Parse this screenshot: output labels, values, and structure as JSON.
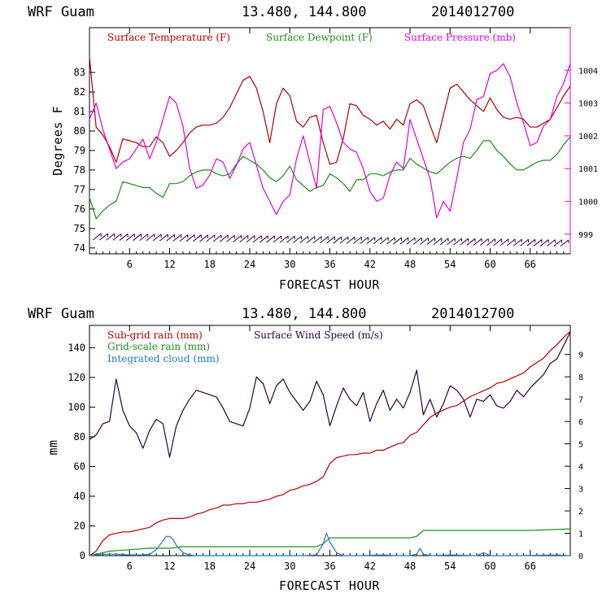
{
  "chart_data": [
    {
      "type": "line",
      "header": {
        "site": "WRF   Guam",
        "coords": "13.480, 144.800",
        "run": "2014012700"
      },
      "xlabel": "FORECAST HOUR",
      "ylabel": "Degrees F",
      "xlim": [
        0,
        72
      ],
      "ylim": [
        73.7,
        85.3
      ],
      "y2lim": [
        998.4,
        1005.3
      ],
      "xticks": [
        "6",
        "12",
        "18",
        "24",
        "30",
        "36",
        "42",
        "48",
        "54",
        "60",
        "66"
      ],
      "yticks": [
        "74",
        "75",
        "76",
        "77",
        "78",
        "79",
        "80",
        "81",
        "82",
        "83"
      ],
      "y2ticks": [
        "999",
        "1000",
        "1001",
        "1002",
        "1003",
        "1004"
      ],
      "colors": {
        "temperature": "#b00000",
        "dewpoint": "#1e8c1e",
        "pressure": "#e000e0",
        "wind_barbs": "#2a0040"
      },
      "legend": [
        "Surface Temperature (F)",
        "Surface Dewpoint (F)",
        "Surface Pressure (mb)"
      ],
      "series": [
        {
          "name": "Surface Temperature (F)",
          "axis": "left",
          "x": [
            0,
            1,
            2,
            3,
            4,
            5,
            6,
            7,
            8,
            9,
            10,
            11,
            12,
            13,
            14,
            15,
            16,
            17,
            18,
            19,
            20,
            21,
            22,
            23,
            24,
            25,
            26,
            27,
            28,
            29,
            30,
            31,
            32,
            33,
            34,
            35,
            36,
            37,
            38,
            39,
            40,
            41,
            42,
            43,
            44,
            45,
            46,
            47,
            48,
            49,
            50,
            51,
            52,
            53,
            54,
            55,
            56,
            57,
            58,
            59,
            60,
            61,
            62,
            63,
            64,
            65,
            66,
            67,
            68,
            69,
            70,
            71,
            72
          ],
          "values": [
            83.8,
            80.2,
            79.8,
            79.2,
            78.4,
            79.6,
            79.5,
            79.4,
            79.2,
            79.2,
            79.7,
            79.4,
            78.7,
            79.0,
            79.4,
            79.9,
            80.2,
            80.3,
            80.3,
            80.4,
            80.7,
            81.2,
            81.9,
            82.6,
            82.8,
            82.2,
            81.0,
            79.4,
            81.4,
            82.2,
            81.8,
            80.5,
            80.2,
            80.7,
            80.8,
            79.4,
            78.3,
            78.4,
            79.6,
            81.4,
            81.3,
            80.8,
            80.6,
            80.3,
            80.5,
            80.1,
            80.6,
            80.3,
            81.4,
            81.6,
            81.3,
            80.3,
            79.4,
            80.8,
            82.2,
            82.4,
            82.0,
            81.6,
            81.3,
            81.0,
            81.7,
            81.1,
            80.7,
            80.6,
            80.7,
            80.6,
            80.2,
            80.2,
            80.4,
            80.6,
            81.2,
            81.8,
            82.3
          ]
        },
        {
          "name": "Surface Dewpoint (F)",
          "axis": "left",
          "x": [
            0,
            1,
            2,
            3,
            4,
            5,
            6,
            7,
            8,
            9,
            10,
            11,
            12,
            13,
            14,
            15,
            16,
            17,
            18,
            19,
            20,
            21,
            22,
            23,
            24,
            25,
            26,
            27,
            28,
            29,
            30,
            31,
            32,
            33,
            34,
            35,
            36,
            37,
            38,
            39,
            40,
            41,
            42,
            43,
            44,
            45,
            46,
            47,
            48,
            49,
            50,
            51,
            52,
            53,
            54,
            55,
            56,
            57,
            58,
            59,
            60,
            61,
            62,
            63,
            64,
            65,
            66,
            67,
            68,
            69,
            70,
            71,
            72
          ],
          "values": [
            76.6,
            75.5,
            75.9,
            76.2,
            76.4,
            77.4,
            77.3,
            77.2,
            77.1,
            77.1,
            76.8,
            76.6,
            77.3,
            77.3,
            77.4,
            77.7,
            77.9,
            78.0,
            78.0,
            77.8,
            77.7,
            77.8,
            78.3,
            78.7,
            78.5,
            78.3,
            78.0,
            77.6,
            77.4,
            77.7,
            78.2,
            77.5,
            77.2,
            76.9,
            77.1,
            77.2,
            77.8,
            77.6,
            77.3,
            76.9,
            77.5,
            77.5,
            77.8,
            77.8,
            77.7,
            77.9,
            78.0,
            78.0,
            78.6,
            78.3,
            78.1,
            77.9,
            77.8,
            78.1,
            78.4,
            78.6,
            78.7,
            78.6,
            79.0,
            79.5,
            79.5,
            79.0,
            78.7,
            78.3,
            78.0,
            78.0,
            78.2,
            78.4,
            78.5,
            78.5,
            78.8,
            79.3,
            79.7
          ]
        },
        {
          "name": "Surface Pressure (mb)",
          "axis": "right",
          "x": [
            0,
            1,
            2,
            3,
            4,
            5,
            6,
            7,
            8,
            9,
            10,
            11,
            12,
            13,
            14,
            15,
            16,
            17,
            18,
            19,
            20,
            21,
            22,
            23,
            24,
            25,
            26,
            27,
            28,
            29,
            30,
            31,
            32,
            33,
            34,
            35,
            36,
            37,
            38,
            39,
            40,
            41,
            42,
            43,
            44,
            45,
            46,
            47,
            48,
            49,
            50,
            51,
            52,
            53,
            54,
            55,
            56,
            57,
            58,
            59,
            60,
            61,
            62,
            63,
            64,
            65,
            66,
            67,
            68,
            69,
            70,
            71,
            72
          ],
          "values": [
            1002.5,
            1003.0,
            1002.2,
            1001.6,
            1001.0,
            1001.2,
            1001.3,
            1001.6,
            1001.9,
            1001.3,
            1001.8,
            1002.5,
            1003.2,
            1003.0,
            1002.3,
            1001.0,
            1000.4,
            1000.5,
            1000.8,
            1001.3,
            1001.2,
            1000.7,
            1001.1,
            1001.6,
            1001.8,
            1001.1,
            1000.4,
            1000.0,
            999.6,
            1000.0,
            1000.2,
            1001.3,
            1002.0,
            1001.2,
            1000.4,
            1002.8,
            1002.9,
            1002.4,
            1001.8,
            1001.6,
            1001.5,
            1001.0,
            1000.3,
            1000.0,
            1000.1,
            1000.8,
            1001.2,
            1001.0,
            1002.5,
            1001.9,
            1001.3,
            1000.7,
            999.5,
            1000.0,
            999.7,
            1000.7,
            1001.8,
            1002.2,
            1003.1,
            1003.2,
            1003.9,
            1004.0,
            1004.2,
            1003.8,
            1003.0,
            1002.4,
            1001.7,
            1001.8,
            1002.3,
            1002.5,
            1003.2,
            1003.6,
            1004.2
          ]
        }
      ],
      "wind_barbs": {
        "x": [
          1,
          2,
          3,
          4,
          5,
          6,
          7,
          8,
          9,
          10,
          11,
          12,
          13,
          14,
          15,
          16,
          17,
          18,
          19,
          20,
          21,
          22,
          23,
          24,
          25,
          26,
          27,
          28,
          29,
          30,
          31,
          32,
          33,
          34,
          35,
          36,
          37,
          38,
          39,
          40,
          41,
          42,
          43,
          44,
          45,
          46,
          47,
          48,
          49,
          50,
          51,
          52,
          53,
          54,
          55,
          56,
          57,
          58,
          59,
          60,
          61,
          62,
          63,
          64,
          65,
          66,
          67,
          68,
          69,
          70,
          71
        ]
      }
    },
    {
      "type": "line",
      "header": {
        "site": "WRF   Guam",
        "coords": "13.480, 144.800",
        "run": "2014012700"
      },
      "xlabel": "FORECAST HOUR",
      "ylabel": "mm",
      "xlim": [
        0,
        72
      ],
      "ylim": [
        0,
        155
      ],
      "y2lim": [
        0,
        10.3
      ],
      "xticks": [
        "6",
        "12",
        "18",
        "24",
        "30",
        "36",
        "42",
        "48",
        "54",
        "60",
        "66"
      ],
      "yticks": [
        "0",
        "20",
        "40",
        "60",
        "80",
        "100",
        "120",
        "140"
      ],
      "y2ticks": [
        "0",
        "1",
        "2",
        "3",
        "4",
        "5",
        "6",
        "7",
        "8",
        "9"
      ],
      "colors": {
        "subgrid": "#b00000",
        "gridscale": "#1e8c1e",
        "cloud": "#1e78c8",
        "wind": "#2a0040"
      },
      "legend": [
        "Sub-grid rain (mm)",
        "Surface Wind Speed (m/s)",
        "Grid-scale rain (mm)",
        "Integrated cloud (mm)"
      ],
      "series": [
        {
          "name": "Sub-grid rain (mm)",
          "axis": "left",
          "x": [
            0,
            1,
            2,
            3,
            4,
            5,
            6,
            7,
            8,
            9,
            10,
            11,
            12,
            13,
            14,
            15,
            16,
            17,
            18,
            19,
            20,
            21,
            22,
            23,
            24,
            25,
            26,
            27,
            28,
            29,
            30,
            31,
            32,
            33,
            34,
            35,
            36,
            37,
            38,
            39,
            40,
            41,
            42,
            43,
            44,
            45,
            46,
            47,
            48,
            49,
            50,
            51,
            52,
            53,
            54,
            55,
            56,
            57,
            58,
            59,
            60,
            61,
            62,
            63,
            64,
            65,
            66,
            67,
            68,
            69,
            70,
            71,
            72
          ],
          "values": [
            0,
            3,
            10,
            14,
            15,
            16,
            16,
            17,
            18,
            19,
            22,
            24,
            25,
            25,
            25,
            26,
            28,
            29,
            31,
            32,
            34,
            34,
            35,
            35,
            36,
            36,
            37,
            38,
            40,
            41,
            44,
            45,
            47,
            48,
            50,
            53,
            62,
            66,
            67,
            68,
            68,
            69,
            69,
            71,
            71,
            73,
            75,
            76,
            81,
            83,
            88,
            93,
            96,
            98,
            100,
            101,
            104,
            107,
            109,
            111,
            113,
            116,
            117,
            119,
            121,
            123,
            127,
            130,
            133,
            138,
            142,
            147,
            151
          ]
        },
        {
          "name": "Grid-scale rain (mm)",
          "axis": "left",
          "x": [
            0,
            3,
            6,
            9,
            11,
            12,
            14,
            18,
            24,
            30,
            34,
            35,
            36,
            40,
            48,
            49,
            50,
            55,
            60,
            66,
            72
          ],
          "values": [
            0,
            3,
            4,
            5,
            5,
            5,
            6,
            6,
            6,
            6,
            6,
            8,
            12,
            12,
            12,
            13,
            17,
            17,
            17,
            17,
            18
          ]
        },
        {
          "name": "Integrated cloud (mm)",
          "axis": "left",
          "x": [
            0,
            2,
            4,
            6,
            8,
            9,
            10,
            11,
            11.5,
            12,
            12.5,
            13,
            14,
            15,
            16,
            20,
            26,
            32,
            34,
            35,
            35.5,
            36,
            37,
            38,
            40,
            44,
            46,
            48,
            49,
            49.5,
            50,
            51,
            54,
            58,
            59,
            60,
            64,
            70,
            72
          ],
          "values": [
            0,
            1,
            1,
            0.5,
            0.5,
            1,
            4,
            10,
            13,
            13,
            11,
            7,
            2,
            0.5,
            0,
            0,
            0,
            0,
            0.5,
            8,
            15,
            9,
            2,
            0,
            0,
            0.5,
            0,
            0,
            1,
            5,
            1,
            0,
            0.5,
            0,
            2,
            0,
            0,
            0.5,
            0
          ]
        },
        {
          "name": "Surface Wind Speed (m/s)",
          "axis": "right",
          "x": [
            0,
            1,
            2,
            3,
            4,
            5,
            6,
            7,
            8,
            9,
            10,
            11,
            12,
            13,
            14,
            15,
            16,
            17,
            18,
            19,
            20,
            21,
            22,
            23,
            24,
            25,
            26,
            27,
            28,
            29,
            30,
            31,
            32,
            33,
            34,
            35,
            36,
            37,
            38,
            39,
            40,
            41,
            42,
            43,
            44,
            45,
            46,
            47,
            48,
            49,
            50,
            51,
            52,
            53,
            54,
            55,
            56,
            57,
            58,
            59,
            60,
            61,
            62,
            63,
            64,
            65,
            66,
            67,
            68,
            69,
            70,
            71,
            72
          ],
          "values": [
            5.2,
            5.4,
            5.9,
            6.0,
            7.9,
            6.5,
            5.8,
            5.5,
            4.8,
            5.6,
            6.1,
            5.9,
            4.4,
            5.8,
            6.5,
            7.0,
            7.4,
            7.3,
            7.2,
            7.1,
            6.6,
            6.0,
            5.9,
            5.8,
            6.6,
            8.0,
            7.7,
            6.8,
            7.6,
            7.9,
            7.3,
            6.9,
            6.5,
            6.9,
            7.8,
            7.2,
            5.8,
            6.7,
            7.5,
            7.0,
            6.7,
            7.3,
            6.0,
            6.8,
            7.4,
            6.5,
            7.0,
            6.6,
            7.3,
            8.3,
            6.3,
            7.0,
            6.2,
            6.8,
            7.6,
            7.4,
            7.0,
            6.2,
            7.0,
            6.9,
            7.2,
            6.7,
            6.6,
            6.9,
            7.4,
            7.1,
            7.5,
            7.8,
            8.1,
            8.6,
            8.8,
            9.4,
            10.0
          ]
        }
      ]
    }
  ]
}
